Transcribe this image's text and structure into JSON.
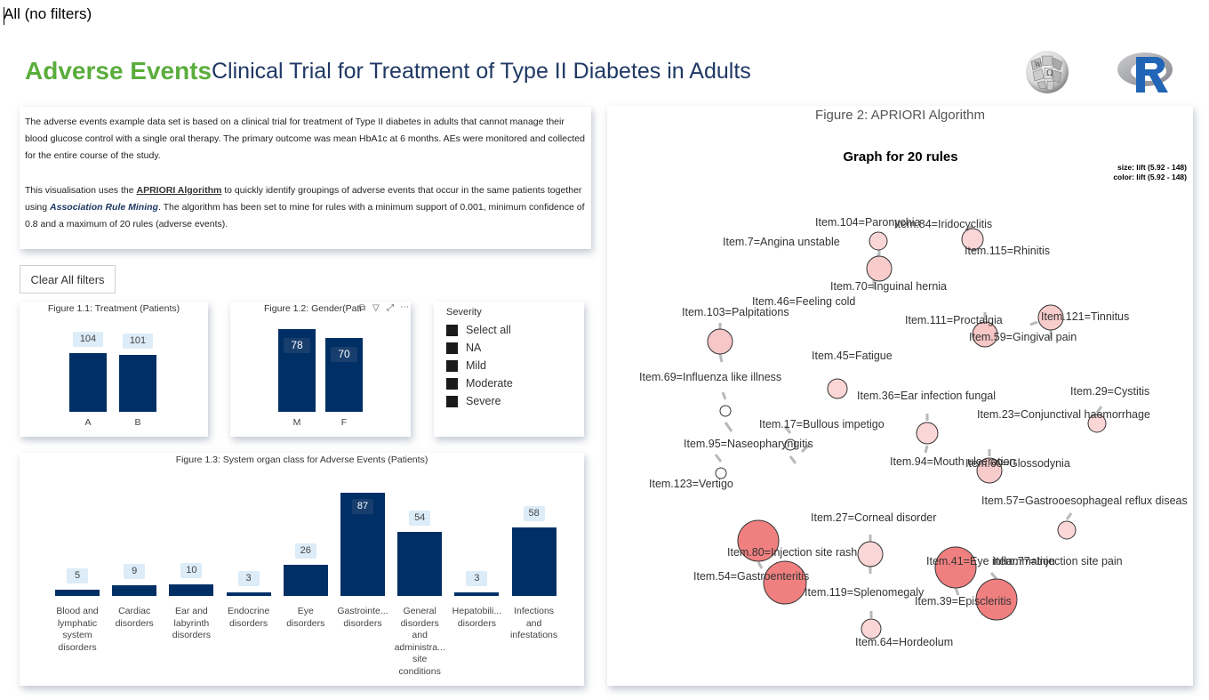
{
  "filter_bar": {
    "text": "All (no filters)"
  },
  "header": {
    "title_accent": "Adverse Events",
    "title_main": "Clinical Trial for Treatment of Type II Diabetes in Adults",
    "accent_color": "#5aad3c",
    "main_color": "#1f3864"
  },
  "description": {
    "para1": "The adverse events example data set is based on a clinical trial for treatment of Type II diabetes in adults that cannot manage their blood glucose control with a single oral therapy. The primary outcome was mean HbA1c at 6 months. AEs were monitored and collected for the entire course of the study.",
    "para2_a": "This visualisation uses the ",
    "para2_link": "APRIORI Algorithm",
    "para2_b": " to quickly identify groupings of adverse events that occur in the same patients together using ",
    "para2_link2": "Association Rule Mining",
    "para2_c": ". The algorithm has been set to mine for rules with a minimum support of 0.001, minimum confidence of 0.8 and a maximum of 20 rules (adverse events)."
  },
  "clear_button": {
    "label": "Clear All filters"
  },
  "fig11": {
    "title": "Figure 1.1: Treatment (Patients)",
    "bar_color": "#002f66"
  },
  "fig12": {
    "title": "Figure 1.2: Gender(Pati",
    "icons": [
      "copy-icon",
      "filter-icon",
      "focus-icon",
      "more-icon"
    ]
  },
  "severity": {
    "title": "Severity",
    "options": [
      "Select all",
      "NA",
      "Mild",
      "Moderate",
      "Severe"
    ]
  },
  "fig13": {
    "title": "Figure 1.3: System organ class for Adverse Events (Patients)"
  },
  "chart_data": [
    {
      "type": "bar",
      "title": "Figure 1.1: Treatment (Patients)",
      "categories": [
        "A",
        "B"
      ],
      "values": [
        104,
        101
      ]
    },
    {
      "type": "bar",
      "title": "Figure 1.2: Gender(Pati",
      "categories": [
        "M",
        "F"
      ],
      "values": [
        78,
        70
      ]
    },
    {
      "type": "bar",
      "title": "Figure 1.3: System organ class for Adverse Events (Patients)",
      "categories": [
        "Blood and lymphatic system disorders",
        "Cardiac disorders",
        "Ear and labyrinth disorders",
        "Endocrine disorders",
        "Eye disorders",
        "Gastrointe... disorders",
        "General disorders and administra... site conditions",
        "Hepatobili... disorders",
        "Infections and infestations"
      ],
      "values": [
        5,
        9,
        10,
        3,
        26,
        87,
        54,
        3,
        58
      ]
    }
  ],
  "fig2": {
    "title": "Figure 2: APRIORI Algorithm",
    "graph_title": "Graph for 20 rules",
    "size_legend": "size: lift (5.92 - 148)",
    "color_legend": "color: lift (5.92 - 148)",
    "nodes": [
      {
        "label": "Item.104=Paronychia"
      },
      {
        "label": "Item.84=Iridocyclitis"
      },
      {
        "label": "Item.7=Angina unstable"
      },
      {
        "label": "Item.115=Rhinitis"
      },
      {
        "label": "Item.70=Inguinal hernia"
      },
      {
        "label": "Item.46=Feeling cold"
      },
      {
        "label": "Item.103=Palpitations"
      },
      {
        "label": "Item.111=Proctalgia"
      },
      {
        "label": "Item.121=Tinnitus"
      },
      {
        "label": "Item.59=Gingival pain"
      },
      {
        "label": "Item.45=Fatigue"
      },
      {
        "label": "Item.69=Influenza like illness"
      },
      {
        "label": "Item.36=Ear infection fungal"
      },
      {
        "label": "Item.29=Cystitis"
      },
      {
        "label": "Item.23=Conjunctival haemorrhage"
      },
      {
        "label": "Item.17=Bullous impetigo"
      },
      {
        "label": "Item.95=Naseopharyngitis"
      },
      {
        "label": "Item.94=Mouth ulceration"
      },
      {
        "label": "Item.60=Glossodynia"
      },
      {
        "label": "Item.123=Vertigo"
      },
      {
        "label": "Item.57=Gastrooesophageal reflux diseas"
      },
      {
        "label": "Item.27=Corneal disorder"
      },
      {
        "label": "Item.80=Injection site rash"
      },
      {
        "label": "Item.41=Eye inflammation"
      },
      {
        "label": "Item.77=Injection site pain"
      },
      {
        "label": "Item.54=Gastroenteritis"
      },
      {
        "label": "Item.119=Splenomegaly"
      },
      {
        "label": "Item.39=Episcleritis"
      },
      {
        "label": "Item.64=Hordeolum"
      }
    ]
  }
}
